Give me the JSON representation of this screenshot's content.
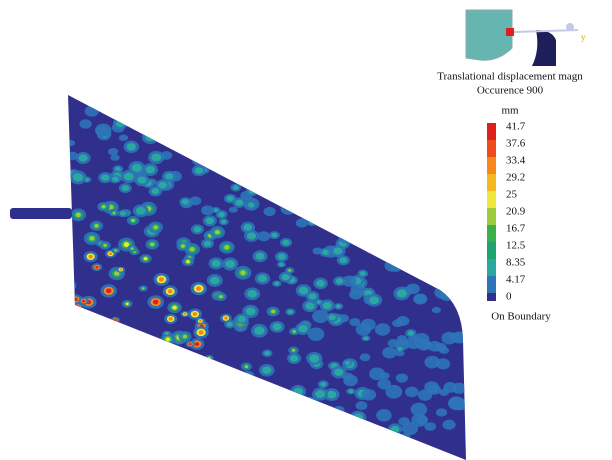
{
  "legend": {
    "title": "Translational displacement magn",
    "subtitle": "Occurence 900",
    "unit": "mm",
    "labels": [
      41.7,
      37.6,
      33.4,
      29.2,
      25,
      20.9,
      16.7,
      12.5,
      8.35,
      4.17,
      0
    ],
    "colors": [
      "#e0201c",
      "#f04a1a",
      "#f7861b",
      "#f6b820",
      "#eee63a",
      "#9ccc3c",
      "#3bb04a",
      "#1ea36e",
      "#2aa8a0",
      "#2e74b8"
    ],
    "footer": "On Boundary"
  }
}
